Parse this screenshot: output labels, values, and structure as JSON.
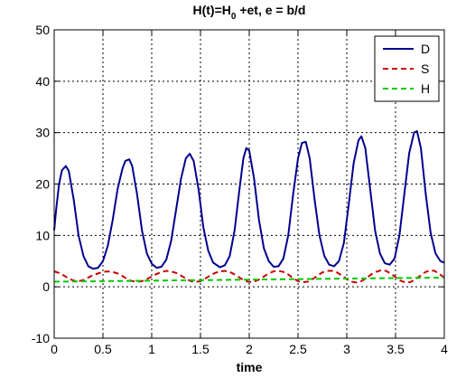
{
  "chart_data": {
    "type": "line",
    "title_parts": {
      "main": "H(t)=H",
      "sub": "0",
      "rest": " +et, e = b/d"
    },
    "xlabel": "time",
    "ylabel": "",
    "xlim": [
      0,
      4
    ],
    "ylim": [
      -10,
      50
    ],
    "xticks": [
      0,
      0.5,
      1,
      1.5,
      2,
      2.5,
      3,
      3.5,
      4
    ],
    "xtick_labels": [
      "0",
      "0.5",
      "1",
      "1.5",
      "2",
      "2.5",
      "3",
      "3.5",
      "4"
    ],
    "yticks": [
      -10,
      0,
      10,
      20,
      30,
      40,
      50
    ],
    "ytick_labels": [
      "-10",
      "0",
      "10",
      "20",
      "30",
      "40",
      "50"
    ],
    "grid": true,
    "legend_position": "top-right",
    "series": [
      {
        "name": "D",
        "color": "#00008f",
        "dash": "solid",
        "points": [
          [
            0,
            11
          ],
          [
            0.02,
            15
          ],
          [
            0.05,
            20
          ],
          [
            0.08,
            22.7
          ],
          [
            0.12,
            23.5
          ],
          [
            0.15,
            22.5
          ],
          [
            0.2,
            17
          ],
          [
            0.25,
            10
          ],
          [
            0.3,
            6
          ],
          [
            0.35,
            4
          ],
          [
            0.4,
            3.5
          ],
          [
            0.45,
            3.7
          ],
          [
            0.5,
            5
          ],
          [
            0.55,
            8
          ],
          [
            0.6,
            13
          ],
          [
            0.65,
            19
          ],
          [
            0.7,
            23
          ],
          [
            0.73,
            24.5
          ],
          [
            0.77,
            24.8
          ],
          [
            0.8,
            23.5
          ],
          [
            0.85,
            18
          ],
          [
            0.9,
            11
          ],
          [
            0.95,
            6.5
          ],
          [
            1,
            4.5
          ],
          [
            1.05,
            3.7
          ],
          [
            1.1,
            3.9
          ],
          [
            1.15,
            5.3
          ],
          [
            1.2,
            9
          ],
          [
            1.25,
            15
          ],
          [
            1.3,
            21
          ],
          [
            1.35,
            25
          ],
          [
            1.39,
            25.9
          ],
          [
            1.43,
            24.5
          ],
          [
            1.48,
            19
          ],
          [
            1.53,
            11.5
          ],
          [
            1.58,
            7
          ],
          [
            1.63,
            4.7
          ],
          [
            1.7,
            3.8
          ],
          [
            1.75,
            4.2
          ],
          [
            1.8,
            6
          ],
          [
            1.85,
            11
          ],
          [
            1.9,
            19
          ],
          [
            1.94,
            25
          ],
          [
            1.97,
            27
          ],
          [
            2,
            26.5
          ],
          [
            2.05,
            21
          ],
          [
            2.1,
            13
          ],
          [
            2.15,
            7.5
          ],
          [
            2.2,
            5
          ],
          [
            2.25,
            3.9
          ],
          [
            2.3,
            4
          ],
          [
            2.35,
            5.5
          ],
          [
            2.4,
            10
          ],
          [
            2.45,
            18
          ],
          [
            2.5,
            25
          ],
          [
            2.54,
            28
          ],
          [
            2.58,
            28.2
          ],
          [
            2.62,
            25
          ],
          [
            2.67,
            17
          ],
          [
            2.72,
            10
          ],
          [
            2.77,
            6
          ],
          [
            2.82,
            4.3
          ],
          [
            2.87,
            4
          ],
          [
            2.92,
            5
          ],
          [
            2.97,
            8.5
          ],
          [
            3.02,
            16
          ],
          [
            3.07,
            24
          ],
          [
            3.12,
            28.5
          ],
          [
            3.15,
            29.3
          ],
          [
            3.19,
            27
          ],
          [
            3.24,
            19
          ],
          [
            3.29,
            11
          ],
          [
            3.34,
            6.5
          ],
          [
            3.39,
            4.6
          ],
          [
            3.44,
            4.3
          ],
          [
            3.49,
            5.5
          ],
          [
            3.54,
            10
          ],
          [
            3.59,
            18
          ],
          [
            3.64,
            26
          ],
          [
            3.69,
            30
          ],
          [
            3.72,
            30.3
          ],
          [
            3.76,
            27
          ],
          [
            3.81,
            18
          ],
          [
            3.86,
            10.5
          ],
          [
            3.91,
            6.5
          ],
          [
            3.96,
            5
          ],
          [
            4,
            4.7
          ]
        ]
      },
      {
        "name": "S",
        "color": "#cc0000",
        "dash": "dashed",
        "points": [
          [
            0,
            3
          ],
          [
            0.05,
            2.7
          ],
          [
            0.1,
            2.2
          ],
          [
            0.15,
            1.6
          ],
          [
            0.2,
            1.2
          ],
          [
            0.25,
            1.1
          ],
          [
            0.3,
            1.3
          ],
          [
            0.35,
            1.8
          ],
          [
            0.4,
            2.3
          ],
          [
            0.45,
            2.6
          ],
          [
            0.5,
            2.9
          ],
          [
            0.55,
            3
          ],
          [
            0.6,
            2.9
          ],
          [
            0.65,
            2.6
          ],
          [
            0.7,
            2.1
          ],
          [
            0.75,
            1.5
          ],
          [
            0.8,
            1.1
          ],
          [
            0.85,
            1
          ],
          [
            0.9,
            1.1
          ],
          [
            0.95,
            1.5
          ],
          [
            1,
            2
          ],
          [
            1.05,
            2.5
          ],
          [
            1.1,
            2.9
          ],
          [
            1.15,
            3.1
          ],
          [
            1.2,
            3
          ],
          [
            1.25,
            2.7
          ],
          [
            1.3,
            2.2
          ],
          [
            1.35,
            1.6
          ],
          [
            1.4,
            1.1
          ],
          [
            1.45,
            0.95
          ],
          [
            1.5,
            1.1
          ],
          [
            1.55,
            1.6
          ],
          [
            1.6,
            2.2
          ],
          [
            1.65,
            2.7
          ],
          [
            1.7,
            3
          ],
          [
            1.75,
            3.1
          ],
          [
            1.8,
            2.9
          ],
          [
            1.85,
            2.4
          ],
          [
            1.9,
            1.8
          ],
          [
            1.95,
            1.2
          ],
          [
            2,
            0.95
          ],
          [
            2.05,
            1
          ],
          [
            2.1,
            1.4
          ],
          [
            2.15,
            2
          ],
          [
            2.2,
            2.6
          ],
          [
            2.25,
            3
          ],
          [
            2.3,
            3.1
          ],
          [
            2.35,
            2.9
          ],
          [
            2.4,
            2.4
          ],
          [
            2.45,
            1.7
          ],
          [
            2.5,
            1.1
          ],
          [
            2.55,
            0.9
          ],
          [
            2.6,
            1
          ],
          [
            2.65,
            1.5
          ],
          [
            2.7,
            2.2
          ],
          [
            2.75,
            2.8
          ],
          [
            2.8,
            3.1
          ],
          [
            2.85,
            3.1
          ],
          [
            2.9,
            2.8
          ],
          [
            2.95,
            2.2
          ],
          [
            3,
            1.5
          ],
          [
            3.05,
            1
          ],
          [
            3.1,
            0.85
          ],
          [
            3.15,
            1.1
          ],
          [
            3.2,
            1.7
          ],
          [
            3.25,
            2.4
          ],
          [
            3.3,
            2.9
          ],
          [
            3.35,
            3.2
          ],
          [
            3.4,
            3.1
          ],
          [
            3.45,
            2.6
          ],
          [
            3.5,
            1.9
          ],
          [
            3.55,
            1.2
          ],
          [
            3.6,
            0.85
          ],
          [
            3.65,
            0.9
          ],
          [
            3.7,
            1.4
          ],
          [
            3.75,
            2.1
          ],
          [
            3.8,
            2.8
          ],
          [
            3.85,
            3.2
          ],
          [
            3.9,
            3.1
          ],
          [
            3.95,
            2.5
          ],
          [
            4,
            1.8
          ]
        ]
      },
      {
        "name": "H",
        "color": "#00cc00",
        "dash": "dashed",
        "points": [
          [
            0,
            1
          ],
          [
            0.5,
            1.1
          ],
          [
            1,
            1.2
          ],
          [
            1.5,
            1.3
          ],
          [
            2,
            1.4
          ],
          [
            2.5,
            1.5
          ],
          [
            3,
            1.6
          ],
          [
            3.5,
            1.7
          ],
          [
            4,
            1.8
          ]
        ]
      }
    ]
  }
}
